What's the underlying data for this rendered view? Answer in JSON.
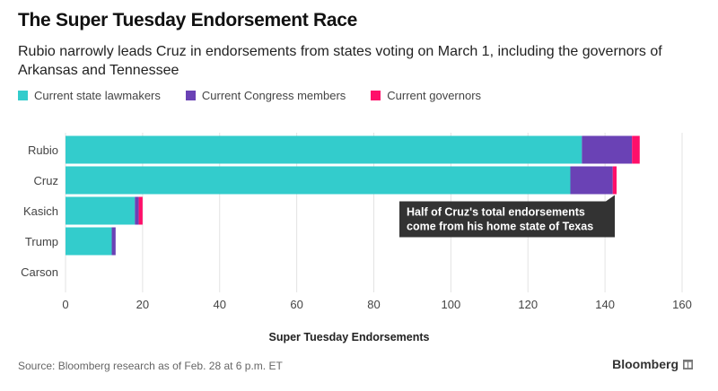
{
  "title": "The Super Tuesday Endorsement Race",
  "subtitle": "Rubio narrowly leads Cruz in endorsements from states voting on March 1, including the governors of Arkansas and Tennessee",
  "source": "Source: Bloomberg research as of Feb. 28 at 6 p.m. ET",
  "brand": "Bloomberg",
  "colors": {
    "state_lawmakers": "#33cccc",
    "congress": "#6a42b5",
    "governors": "#ff0f6a",
    "annotation_bg": "#333333"
  },
  "chart_data": {
    "type": "bar",
    "orientation": "horizontal",
    "stacked": true,
    "categories": [
      "Rubio",
      "Cruz",
      "Kasich",
      "Trump",
      "Carson"
    ],
    "series": [
      {
        "name": "Current state lawmakers",
        "values": [
          134,
          131,
          18,
          12,
          0
        ]
      },
      {
        "name": "Current Congress members",
        "values": [
          13,
          11,
          1,
          1,
          0
        ]
      },
      {
        "name": "Current governors",
        "values": [
          2,
          1,
          1,
          0,
          0
        ]
      }
    ],
    "xlabel": "Super Tuesday Endorsements",
    "xlim": [
      0,
      160
    ],
    "xticks": [
      0,
      20,
      40,
      60,
      80,
      100,
      120,
      140,
      160
    ],
    "grid": "vertical",
    "legend": "top-left",
    "annotation": {
      "category": "Cruz",
      "lines": [
        "Half of Cruz's total endorsements",
        "come from his home state of Texas"
      ]
    }
  }
}
